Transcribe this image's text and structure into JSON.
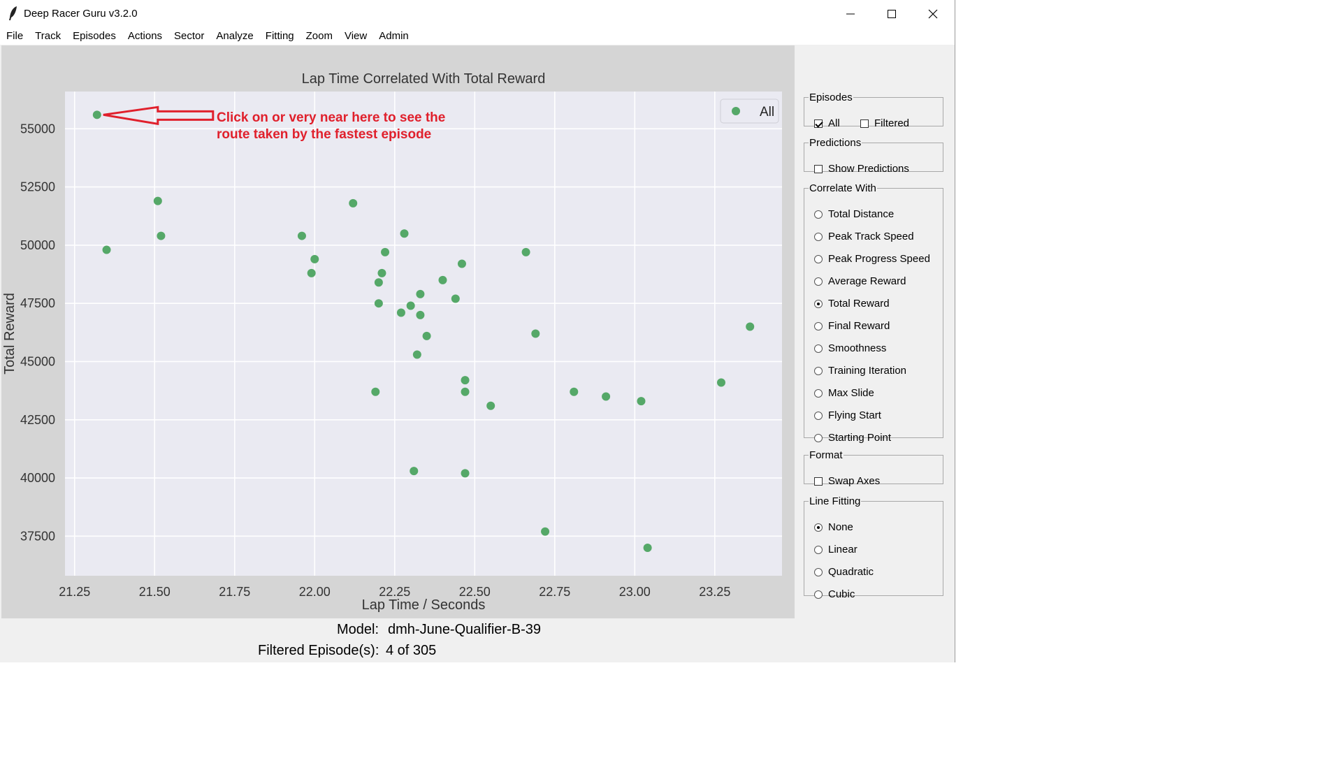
{
  "window": {
    "title": "Deep Racer Guru v3.2.0",
    "icon": "feather-icon",
    "controls": [
      "minimize-icon",
      "maximize-icon",
      "close-icon"
    ]
  },
  "menu": [
    "File",
    "Track",
    "Episodes",
    "Actions",
    "Sector",
    "Analyze",
    "Fitting",
    "Zoom",
    "View",
    "Admin"
  ],
  "chart_data": {
    "type": "scatter",
    "title": "Lap Time Correlated With Total Reward",
    "xlabel": "Lap Time / Seconds",
    "ylabel": "Total Reward",
    "xlim": [
      21.22,
      23.46
    ],
    "ylim": [
      35800,
      56600
    ],
    "x_ticks": [
      "21.25",
      "21.50",
      "21.75",
      "22.00",
      "22.25",
      "22.50",
      "22.75",
      "23.00",
      "23.25"
    ],
    "y_ticks": [
      "37500",
      "40000",
      "42500",
      "45000",
      "47500",
      "50000",
      "52500",
      "55000"
    ],
    "grid": true,
    "legend": "top-right",
    "series": [
      {
        "name": "All",
        "color": "#55a868",
        "points": [
          [
            21.32,
            55600
          ],
          [
            21.35,
            49800
          ],
          [
            21.51,
            51900
          ],
          [
            21.52,
            50400
          ],
          [
            21.96,
            50400
          ],
          [
            21.99,
            48800
          ],
          [
            22.0,
            49400
          ],
          [
            22.12,
            51800
          ],
          [
            22.19,
            43700
          ],
          [
            22.2,
            47500
          ],
          [
            22.2,
            48400
          ],
          [
            22.21,
            48800
          ],
          [
            22.22,
            49700
          ],
          [
            22.27,
            47100
          ],
          [
            22.28,
            50500
          ],
          [
            22.3,
            47400
          ],
          [
            22.31,
            40300
          ],
          [
            22.32,
            45300
          ],
          [
            22.33,
            47000
          ],
          [
            22.33,
            47900
          ],
          [
            22.35,
            46100
          ],
          [
            22.4,
            48500
          ],
          [
            22.44,
            47700
          ],
          [
            22.46,
            49200
          ],
          [
            22.47,
            43700
          ],
          [
            22.47,
            44200
          ],
          [
            22.47,
            40200
          ],
          [
            22.55,
            43100
          ],
          [
            22.66,
            49700
          ],
          [
            22.69,
            46200
          ],
          [
            22.72,
            37700
          ],
          [
            22.81,
            43700
          ],
          [
            22.91,
            43500
          ],
          [
            23.02,
            43300
          ],
          [
            23.04,
            37000
          ],
          [
            23.27,
            44100
          ],
          [
            23.36,
            46500
          ]
        ]
      }
    ],
    "annotation": {
      "line1": "Click on or very near here to see the",
      "line2": "route taken by the fastest episode",
      "color": "#e0202c"
    }
  },
  "status": {
    "model_label": "Model:",
    "model_value": "dmh-June-Qualifier-B-39",
    "filter_label": "Filtered Episode(s):",
    "filter_value": "4 of 305"
  },
  "panel": {
    "episodes": {
      "label": "Episodes",
      "options": [
        {
          "label": "All",
          "checked": true
        },
        {
          "label": "Filtered",
          "checked": false
        }
      ]
    },
    "predictions": {
      "label": "Predictions",
      "options": [
        {
          "label": "Show Predictions",
          "checked": false
        }
      ]
    },
    "correlate": {
      "label": "Correlate With",
      "options": [
        "Total Distance",
        "Peak Track Speed",
        "Peak Progress Speed",
        "Average Reward",
        "Total Reward",
        "Final Reward",
        "Smoothness",
        "Training Iteration",
        "Max Slide",
        "Flying Start",
        "Starting Point"
      ],
      "selected": "Total Reward"
    },
    "format": {
      "label": "Format",
      "options": [
        {
          "label": "Swap Axes",
          "checked": false
        }
      ]
    },
    "line_fitting": {
      "label": "Line Fitting",
      "options": [
        "None",
        "Linear",
        "Quadratic",
        "Cubic"
      ],
      "selected": "None"
    }
  }
}
